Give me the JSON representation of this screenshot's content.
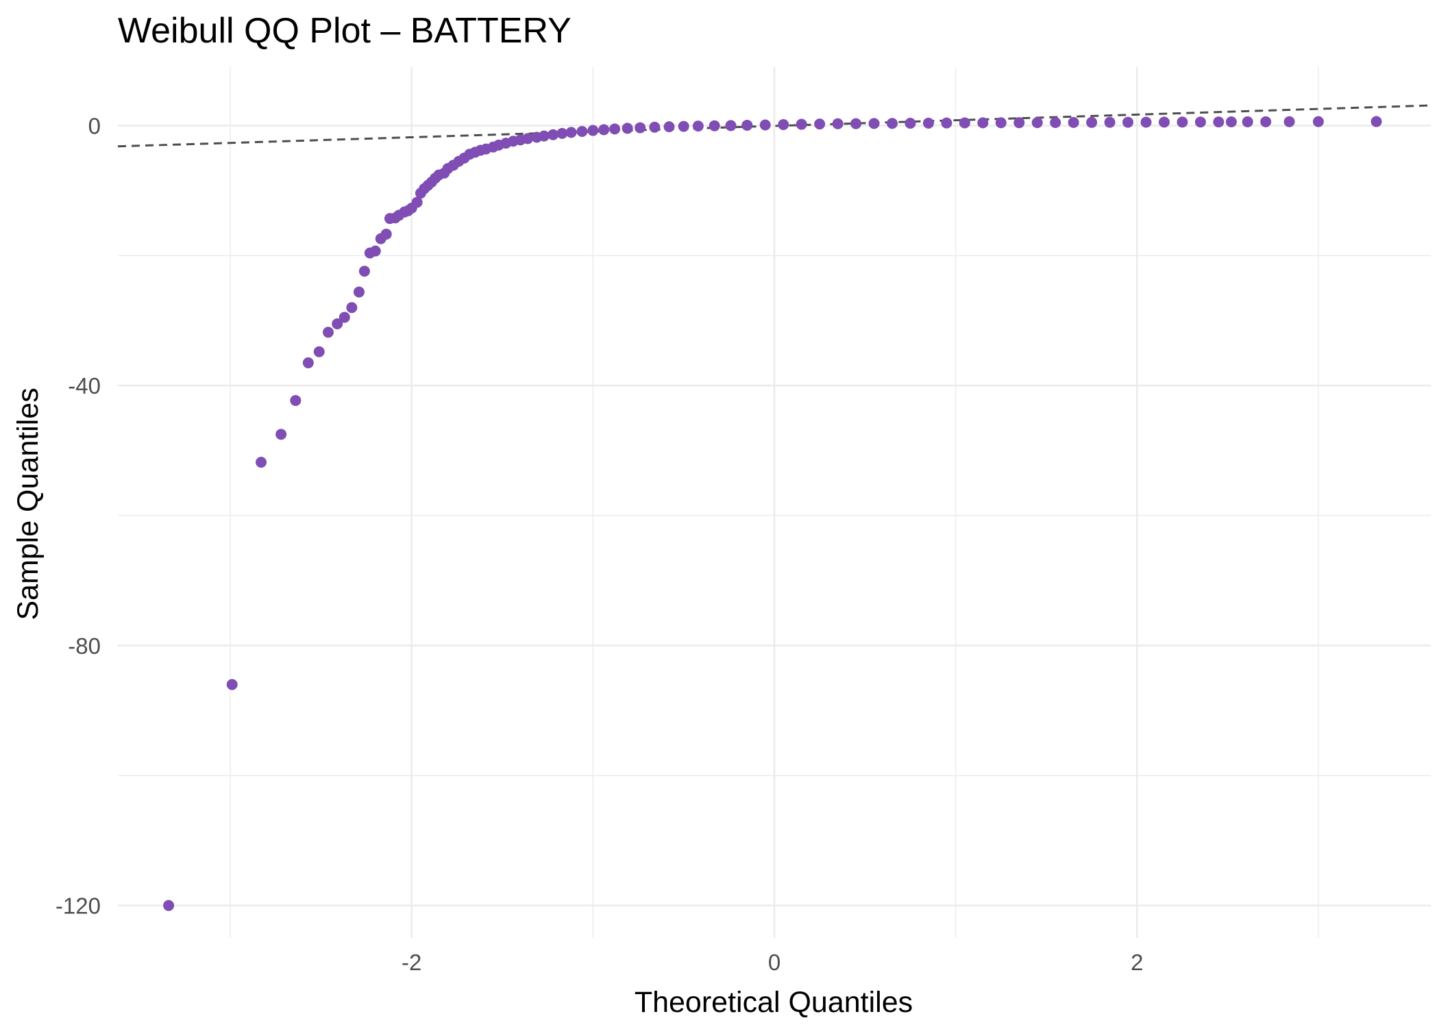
{
  "chart_data": {
    "type": "scatter",
    "title": "Weibull QQ Plot – BATTERY",
    "xlabel": "Theoretical Quantiles",
    "ylabel": "Sample Quantiles",
    "xlim": [
      -3.62,
      3.62
    ],
    "ylim": [
      -125.0,
      9.0
    ],
    "x_ticks": [
      -2,
      0,
      2
    ],
    "x_tick_labels": [
      "-2",
      "0",
      "2"
    ],
    "y_ticks": [
      -120,
      -80,
      -40,
      0
    ],
    "y_tick_labels": [
      "-120",
      "-80",
      "-40",
      "0"
    ],
    "grid": true,
    "legend": "none",
    "colors": {
      "points": "#7f4db3",
      "reference_line": "#4d4d4d",
      "grid": "#ebebeb"
    },
    "reference_line": {
      "style": "dashed",
      "x": [
        -3.62,
        3.62
      ],
      "y": [
        -3.2,
        3.1
      ]
    },
    "series": [
      {
        "x": [
          -3.34,
          -2.99,
          -2.83,
          -2.72,
          -2.64,
          -2.57,
          -2.51,
          -2.46,
          -2.41,
          -2.37,
          -2.33,
          -2.29,
          -2.26,
          -2.23,
          -2.2,
          -2.17,
          -2.14,
          -2.12,
          -2.09,
          -2.07,
          -2.04,
          -2.02,
          -2.0,
          -1.97,
          -1.95,
          -1.93,
          -1.91,
          -1.89,
          -1.87,
          -1.85,
          -1.82,
          -1.8,
          -1.77,
          -1.74,
          -1.71,
          -1.68,
          -1.65,
          -1.62,
          -1.59,
          -1.55,
          -1.52,
          -1.48,
          -1.44,
          -1.4,
          -1.36,
          -1.31,
          -1.27,
          -1.22,
          -1.17,
          -1.12,
          -1.06,
          -1.0,
          -0.94,
          -0.88,
          -0.81,
          -0.74,
          -0.66,
          -0.58,
          -0.5,
          -0.42,
          -0.33,
          -0.24,
          -0.15,
          -0.05,
          0.05,
          0.15,
          0.25,
          0.35,
          0.45,
          0.55,
          0.65,
          0.75,
          0.85,
          0.95,
          1.05,
          1.15,
          1.25,
          1.35,
          1.45,
          1.55,
          1.65,
          1.75,
          1.85,
          1.95,
          2.05,
          2.15,
          2.25,
          2.35,
          2.45,
          2.52,
          2.61,
          2.71,
          2.84,
          3.0,
          3.32
        ],
        "y": [
          -120.0,
          -86.0,
          -51.8,
          -47.5,
          -42.3,
          -36.5,
          -34.8,
          -31.8,
          -30.5,
          -29.5,
          -28.0,
          -25.6,
          -22.4,
          -19.6,
          -19.3,
          -17.4,
          -16.7,
          -14.3,
          -14.2,
          -13.8,
          -13.3,
          -13.1,
          -12.7,
          -11.8,
          -10.4,
          -9.7,
          -9.2,
          -8.7,
          -8.1,
          -7.6,
          -7.3,
          -6.6,
          -6.1,
          -5.5,
          -5.0,
          -4.4,
          -4.1,
          -3.8,
          -3.6,
          -3.3,
          -3.0,
          -2.7,
          -2.4,
          -2.2,
          -2.0,
          -1.8,
          -1.6,
          -1.4,
          -1.2,
          -1.05,
          -0.9,
          -0.75,
          -0.63,
          -0.52,
          -0.42,
          -0.33,
          -0.25,
          -0.18,
          -0.12,
          -0.07,
          -0.03,
          0.0,
          0.05,
          0.1,
          0.15,
          0.2,
          0.24,
          0.28,
          0.3,
          0.32,
          0.34,
          0.36,
          0.38,
          0.4,
          0.42,
          0.43,
          0.44,
          0.45,
          0.46,
          0.47,
          0.48,
          0.49,
          0.5,
          0.51,
          0.52,
          0.53,
          0.54,
          0.55,
          0.56,
          0.57,
          0.58,
          0.59,
          0.6,
          0.61,
          0.62
        ]
      }
    ]
  }
}
